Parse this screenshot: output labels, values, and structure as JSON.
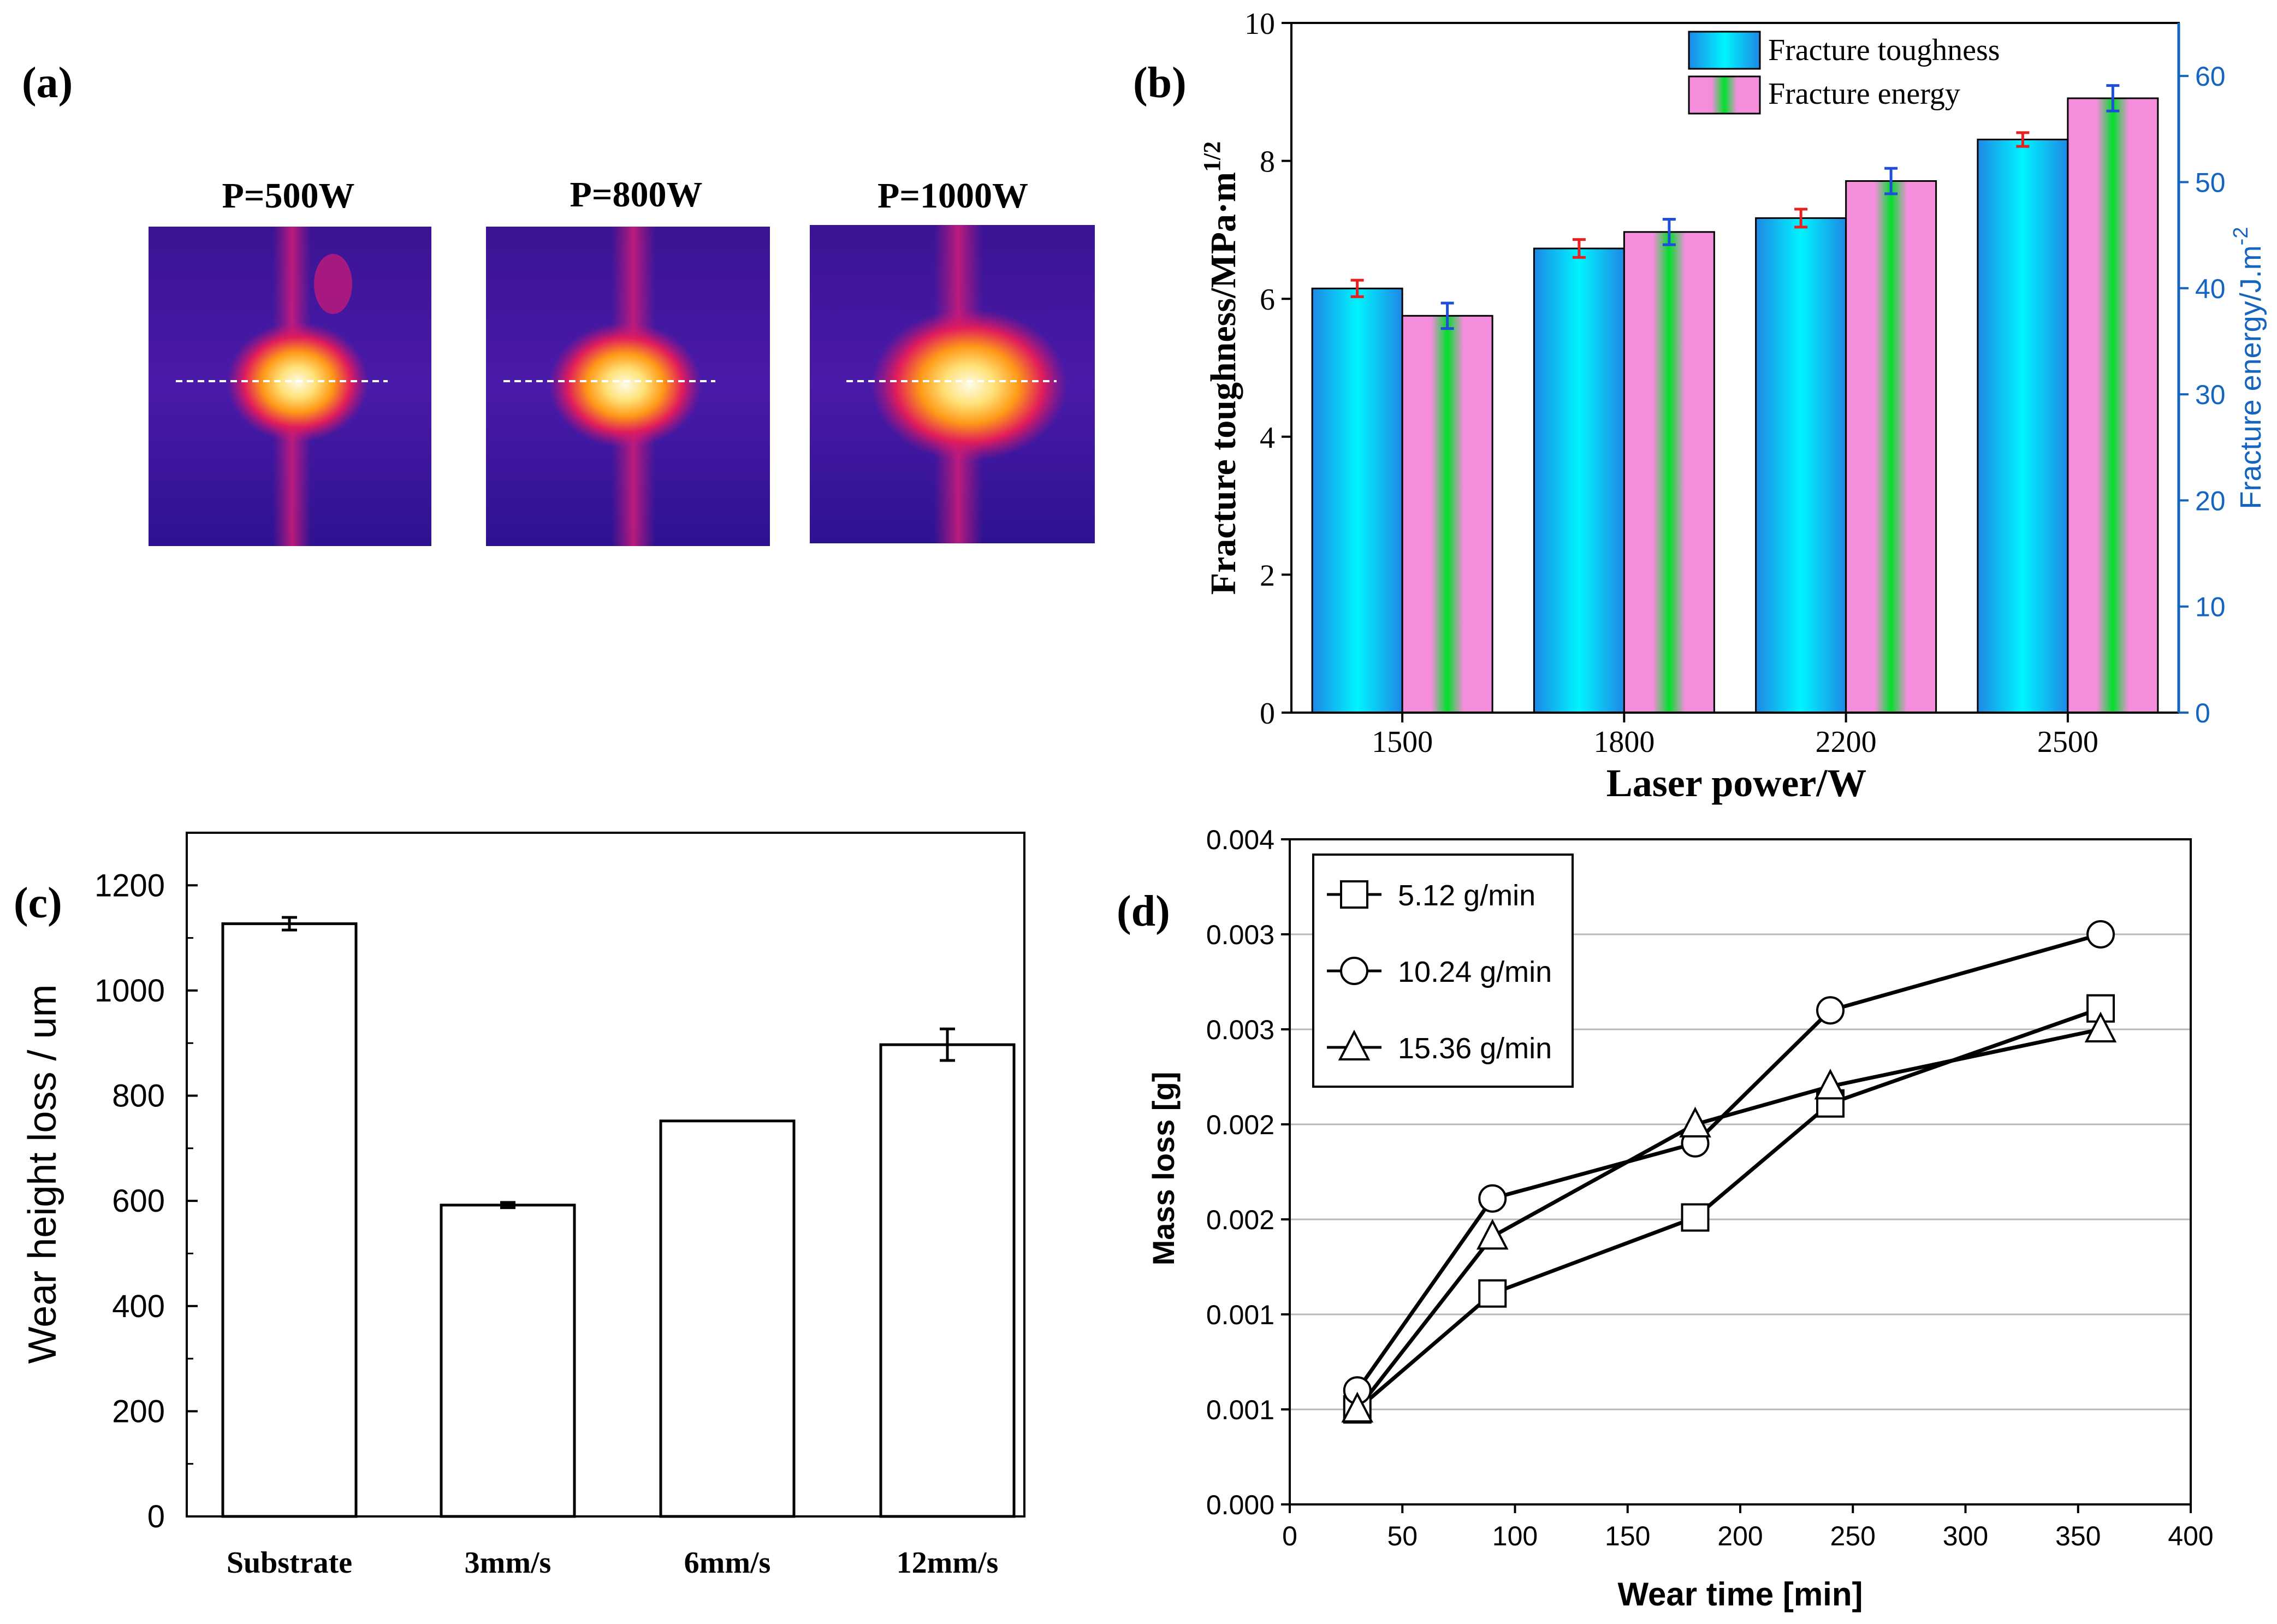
{
  "figure": {
    "panel_labels": [
      "(a)",
      "(b)",
      "(c)",
      "(d)"
    ]
  },
  "chart_data": [
    {
      "panel": "(a)",
      "type": "image-grid",
      "captions": [
        "P=500W",
        "P=800W",
        "P=1000W"
      ]
    },
    {
      "panel": "(b)",
      "type": "bar",
      "title": "",
      "xlabel": "Laser power/W",
      "ylabel": "Fracture toughness/MPa·m",
      "ylabel_superscript": "1/2",
      "y2label": "Fracture energy/J.m",
      "y2label_superscript": "-2",
      "categories": [
        "1500",
        "1800",
        "2200",
        "2500"
      ],
      "ylim": [
        0,
        10
      ],
      "yticks": [
        0,
        2,
        4,
        6,
        8,
        10
      ],
      "y2lim": [
        0,
        65
      ],
      "y2ticks": [
        0,
        10,
        20,
        30,
        40,
        50,
        60
      ],
      "series": [
        {
          "name": "Fracture toughness",
          "axis": "left",
          "values": [
            6.15,
            6.73,
            7.17,
            8.31
          ],
          "errors": [
            0.12,
            0.13,
            0.13,
            0.1
          ],
          "error_color": "#e8201f"
        },
        {
          "name": "Fracture energy",
          "axis": "right",
          "values": [
            37.4,
            45.3,
            50.1,
            57.9
          ],
          "errors": [
            1.2,
            1.2,
            1.2,
            1.2
          ],
          "error_color": "#1f4fd8"
        }
      ],
      "legend": "top-right",
      "colors": {
        "toughness_edge": "#1e88e5",
        "toughness_core": "#00f4ff",
        "energy_edge": "#f58ddd",
        "energy_core": "#00e02a",
        "right_axis": "#1565c0"
      }
    },
    {
      "panel": "(c)",
      "type": "bar",
      "title": "",
      "xlabel": "",
      "ylabel": "Wear height loss / um",
      "categories": [
        "Substrate",
        "3mm/s",
        "6mm/s",
        "12mm/s"
      ],
      "values": [
        1127,
        592,
        752,
        897
      ],
      "errors": [
        12,
        5,
        0,
        30
      ],
      "ylim": [
        0,
        1300
      ],
      "yticks": [
        0,
        200,
        400,
        600,
        800,
        1000,
        1200
      ],
      "grid": false
    },
    {
      "panel": "(d)",
      "type": "line",
      "title": "",
      "xlabel": "Wear time [min]",
      "ylabel": "Mass loss [g]",
      "xlim": [
        0,
        400
      ],
      "xticks": [
        0,
        50,
        100,
        150,
        200,
        250,
        300,
        350,
        400
      ],
      "ylim": [
        0,
        0.0035
      ],
      "ytick_values": [
        0,
        0.0005,
        0.001,
        0.0015,
        0.002,
        0.0025,
        0.003,
        0.0035
      ],
      "ytick_labels": [
        "0.000",
        "0.001",
        "0.001",
        "0.002",
        "0.002",
        "0.003",
        "0.003",
        "0.004"
      ],
      "grid": true,
      "legend": "top-left",
      "series": [
        {
          "name": "5.12 g/min",
          "marker": "square",
          "x": [
            30,
            90,
            180,
            240,
            360
          ],
          "y": [
            0.0005,
            0.00111,
            0.00151,
            0.00211,
            0.00261
          ]
        },
        {
          "name": "10.24 g/min",
          "marker": "circle",
          "x": [
            30,
            90,
            180,
            240,
            360
          ],
          "y": [
            0.0006,
            0.00161,
            0.0019,
            0.0026,
            0.003
          ]
        },
        {
          "name": "15.36 g/min",
          "marker": "triangle",
          "x": [
            30,
            90,
            180,
            240,
            360
          ],
          "y": [
            0.0005,
            0.00141,
            0.002,
            0.0022,
            0.0025
          ]
        }
      ]
    }
  ]
}
